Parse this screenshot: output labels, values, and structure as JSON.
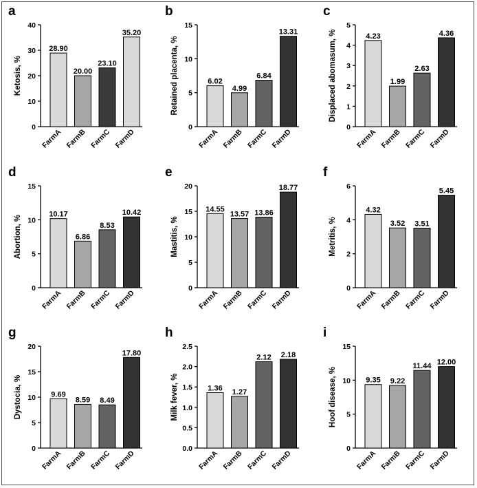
{
  "categories": [
    "FarmA",
    "FarmB",
    "FarmC",
    "FarmD"
  ],
  "bar_colors": [
    "#d9d9d9",
    "#a6a6a6",
    "#636363",
    "#333333"
  ],
  "chart_data": [
    {
      "panel": "a",
      "type": "bar",
      "categories": [
        "FarmA",
        "FarmB",
        "FarmC",
        "FarmD"
      ],
      "values": [
        28.9,
        20.0,
        23.1,
        35.2
      ],
      "value_labels": [
        "28.90",
        "20.00",
        "23.10",
        "35.20"
      ],
      "ylabel": "Ketosis, %",
      "ylim": [
        0,
        40
      ],
      "yticks": [
        0,
        10,
        20,
        30,
        40
      ],
      "ytick_labels": [
        "0",
        "10",
        "20",
        "30",
        "40"
      ],
      "bar_colors": [
        "#d9d9d9",
        "#a6a6a6",
        "#3a3a3a",
        "#d9d9d9"
      ]
    },
    {
      "panel": "b",
      "type": "bar",
      "categories": [
        "FarmA",
        "FarmB",
        "FarmC",
        "FarmD"
      ],
      "values": [
        6.02,
        4.99,
        6.84,
        13.31
      ],
      "value_labels": [
        "6.02",
        "4.99",
        "6.84",
        "13.31"
      ],
      "ylabel": "Retained placenta, %",
      "ylim": [
        0,
        15
      ],
      "yticks": [
        0,
        5,
        10,
        15
      ],
      "ytick_labels": [
        "0",
        "5",
        "10",
        "15"
      ]
    },
    {
      "panel": "c",
      "type": "bar",
      "categories": [
        "FarmA",
        "FarmB",
        "FarmC",
        "FarmD"
      ],
      "values": [
        4.23,
        1.99,
        2.63,
        4.36
      ],
      "value_labels": [
        "4.23",
        "1.99",
        "2.63",
        "4.36"
      ],
      "ylabel": "Displaced  abomasum, %",
      "ylim": [
        0,
        5
      ],
      "yticks": [
        0,
        1,
        2,
        3,
        4,
        5
      ],
      "ytick_labels": [
        "0",
        "1",
        "2",
        "3",
        "4",
        "5"
      ]
    },
    {
      "panel": "d",
      "type": "bar",
      "categories": [
        "FarmA",
        "FarmB",
        "FarmC",
        "FarmD"
      ],
      "values": [
        10.17,
        6.86,
        8.53,
        10.42
      ],
      "value_labels": [
        "10.17",
        "6.86",
        "8.53",
        "10.42"
      ],
      "ylabel": "Abortion, %",
      "ylim": [
        0,
        15
      ],
      "yticks": [
        0,
        5,
        10,
        15
      ],
      "ytick_labels": [
        "0",
        "5",
        "10",
        "15"
      ]
    },
    {
      "panel": "e",
      "type": "bar",
      "categories": [
        "FarmA",
        "FarmB",
        "FarmC",
        "FarmD"
      ],
      "values": [
        14.55,
        13.57,
        13.86,
        18.77
      ],
      "value_labels": [
        "14.55",
        "13.57",
        "13.86",
        "18.77"
      ],
      "ylabel": "Mastitis, %",
      "ylim": [
        0,
        20
      ],
      "yticks": [
        0,
        5,
        10,
        15,
        20
      ],
      "ytick_labels": [
        "0",
        "5",
        "10",
        "15",
        "20"
      ]
    },
    {
      "panel": "f",
      "type": "bar",
      "categories": [
        "FarmA",
        "FarmB",
        "FarmC",
        "FarmD"
      ],
      "values": [
        4.32,
        3.52,
        3.51,
        5.45
      ],
      "value_labels": [
        "4.32",
        "3.52",
        "3.51",
        "5.45"
      ],
      "ylabel": "Metritis, %",
      "ylim": [
        0,
        6
      ],
      "yticks": [
        0,
        2,
        4,
        6
      ],
      "ytick_labels": [
        "0",
        "2",
        "4",
        "6"
      ]
    },
    {
      "panel": "g",
      "type": "bar",
      "categories": [
        "FarmA",
        "FarmB",
        "FarmC",
        "FarmD"
      ],
      "values": [
        9.69,
        8.59,
        8.49,
        17.8
      ],
      "value_labels": [
        "9.69",
        "8.59",
        "8.49",
        "17.80"
      ],
      "ylabel": "Dystocia, %",
      "ylim": [
        0,
        20
      ],
      "yticks": [
        0,
        5,
        10,
        15,
        20
      ],
      "ytick_labels": [
        "0",
        "5",
        "10",
        "15",
        "20"
      ]
    },
    {
      "panel": "h",
      "type": "bar",
      "categories": [
        "FarmA",
        "FarmB",
        "FarmC",
        "FarmD"
      ],
      "values": [
        1.36,
        1.27,
        2.12,
        2.18
      ],
      "value_labels": [
        "1.36",
        "1.27",
        "2.12",
        "2.18"
      ],
      "ylabel": "Milk fever, %",
      "ylim": [
        0,
        2.5
      ],
      "yticks": [
        0,
        0.5,
        1.0,
        1.5,
        2.0,
        2.5
      ],
      "ytick_labels": [
        "0.0",
        "0.5",
        "1.0",
        "1.5",
        "2.0",
        "2.5"
      ]
    },
    {
      "panel": "i",
      "type": "bar",
      "categories": [
        "FarmA",
        "FarmB",
        "FarmC",
        "FarmD"
      ],
      "values": [
        9.35,
        9.22,
        11.44,
        12.0
      ],
      "value_labels": [
        "9.35",
        "9.22",
        "11.44",
        "12.00"
      ],
      "ylabel": "Hoof disease, %",
      "ylim": [
        0,
        15
      ],
      "yticks": [
        0,
        5,
        10,
        15
      ],
      "ytick_labels": [
        "0",
        "5",
        "10",
        "15"
      ]
    }
  ]
}
